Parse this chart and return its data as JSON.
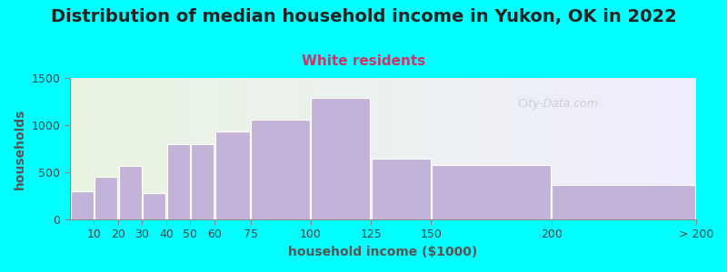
{
  "title": "Distribution of median household income in Yukon, OK in 2022",
  "subtitle": "White residents",
  "xlabel": "household income ($1000)",
  "ylabel": "households",
  "background_outer": "#00FFFF",
  "bar_color": "#C4B3D9",
  "bar_edge_color": "#FFFFFF",
  "categories": [
    "10",
    "20",
    "30",
    "40",
    "50",
    "60",
    "75",
    "100",
    "125",
    "150",
    "200",
    "> 200"
  ],
  "values": [
    300,
    450,
    570,
    280,
    800,
    800,
    930,
    1060,
    1290,
    640,
    575,
    370
  ],
  "left_edges": [
    0,
    10,
    20,
    30,
    40,
    50,
    60,
    75,
    100,
    125,
    150,
    200
  ],
  "right_edges": [
    10,
    20,
    30,
    40,
    50,
    60,
    75,
    100,
    125,
    150,
    200,
    260
  ],
  "ylim": [
    0,
    1500
  ],
  "yticks": [
    0,
    500,
    1000,
    1500
  ],
  "xtick_positions": [
    10,
    20,
    30,
    40,
    50,
    60,
    75,
    100,
    125,
    150,
    200,
    260
  ],
  "xtick_labels": [
    "10",
    "20",
    "30",
    "40",
    "50",
    "60",
    "75",
    "100",
    "125",
    "150",
    "200",
    "> 200"
  ],
  "xlim": [
    0,
    260
  ],
  "title_fontsize": 14,
  "subtitle_fontsize": 11,
  "subtitle_color": "#CC3366",
  "axis_label_fontsize": 10,
  "tick_fontsize": 9,
  "plot_bg_left": "#E8F5E0",
  "plot_bg_right": "#F8F5FF",
  "watermark_text": "City-Data.com",
  "watermark_color": "#C8C8C8",
  "gradient_split": 125
}
